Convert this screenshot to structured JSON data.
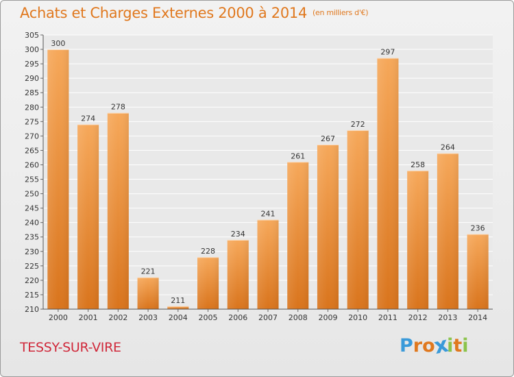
{
  "header": {
    "title": "Achats et Charges Externes 2000 à 2014",
    "subtitle": "(en milliers d'€)"
  },
  "footer": {
    "commune": "TESSY-SUR-VIRE",
    "logo_letters": [
      "P",
      "r",
      "o",
      "x",
      "i",
      "t",
      "i"
    ],
    "logo_colors": [
      "#3a9ad9",
      "#e0781e",
      "#e0781e",
      "#3a9ad9",
      "#8bc34a",
      "#e0781e",
      "#8bc34a"
    ]
  },
  "colors": {
    "bar_top": "#f6a85a",
    "bar_bottom": "#d9741c",
    "title": "#e0781e",
    "commune": "#d0283a",
    "grid": "#ffffff"
  },
  "chart_data": {
    "type": "bar",
    "categories": [
      "2000",
      "2001",
      "2002",
      "2003",
      "2004",
      "2005",
      "2006",
      "2007",
      "2008",
      "2009",
      "2010",
      "2011",
      "2012",
      "2013",
      "2014"
    ],
    "values": [
      300,
      274,
      278,
      221,
      211,
      228,
      234,
      241,
      261,
      267,
      272,
      297,
      258,
      264,
      236
    ],
    "data_labels": [
      "300",
      "274",
      "278",
      "221",
      "211",
      "228",
      "234",
      "241",
      "261",
      "267",
      "272",
      "297",
      "258",
      "264",
      "236"
    ],
    "ylim": [
      210,
      305
    ],
    "yticks": [
      "210",
      "215",
      "220",
      "225",
      "230",
      "235",
      "240",
      "245",
      "250",
      "255",
      "260",
      "265",
      "270",
      "275",
      "280",
      "285",
      "290",
      "295",
      "300",
      "305"
    ],
    "xlabel": "",
    "ylabel": "",
    "grid": true
  }
}
